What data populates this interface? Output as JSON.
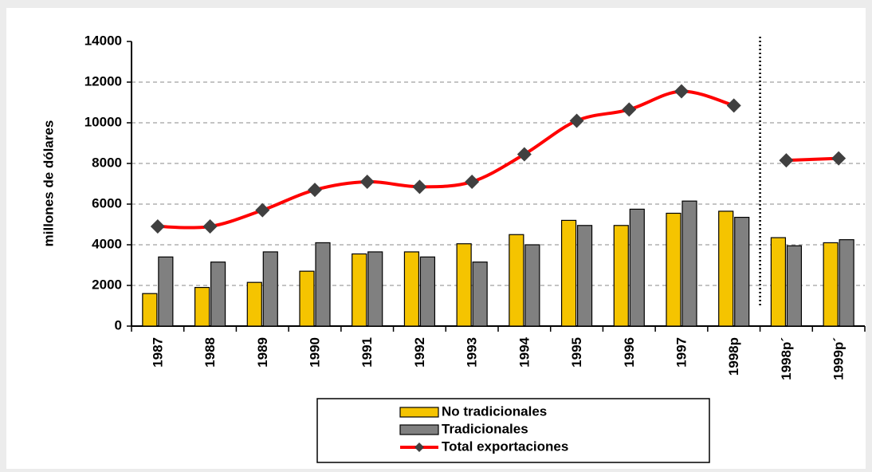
{
  "chart_data": {
    "type": "bar-line",
    "y_label": "millones de dólares",
    "categories": [
      "1987",
      "1988",
      "1989",
      "1990",
      "1991",
      "1992",
      "1993",
      "1994",
      "1995",
      "1996",
      "1997",
      "1998p",
      "1998p´",
      "1999p´"
    ],
    "series": [
      {
        "name": "No  tradicionales",
        "type": "bar",
        "color": "#f5c400",
        "values": [
          1600,
          1900,
          2150,
          2700,
          3550,
          3650,
          4050,
          4500,
          5200,
          4950,
          5550,
          5650,
          4350,
          4100
        ]
      },
      {
        "name": "Tradicionales",
        "type": "bar",
        "color": "#808080",
        "values": [
          3400,
          3150,
          3650,
          4100,
          3650,
          3400,
          3150,
          4000,
          4950,
          5750,
          6150,
          5350,
          3950,
          4250
        ]
      },
      {
        "name": "Total   exportaciones",
        "type": "line",
        "color": "#ff0000",
        "marker_color": "#404040",
        "values": [
          4900,
          4900,
          5700,
          6700,
          7100,
          6850,
          7100,
          8450,
          10100,
          10650,
          11550,
          10850,
          8150,
          8250
        ]
      }
    ],
    "divider_after": 11,
    "ylim": [
      0,
      14000
    ],
    "yticks": [
      0,
      2000,
      4000,
      6000,
      8000,
      10000,
      12000,
      14000
    ],
    "grid": true
  }
}
